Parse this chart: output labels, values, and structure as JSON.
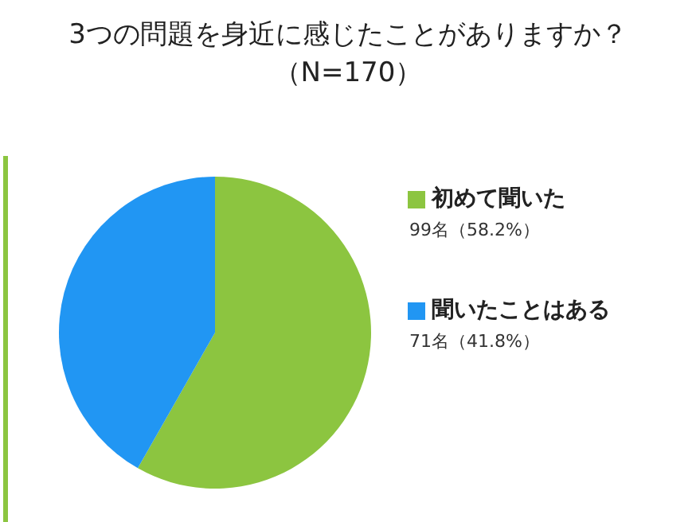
{
  "chart_data": {
    "type": "pie",
    "title": "3つの問題を身近に感じたことがありますか？",
    "subtitle": "（N=170）",
    "categories": [
      "初めて聞いた",
      "聞いたことはある"
    ],
    "values": [
      99,
      71
    ],
    "colors": [
      "#8cc540",
      "#2196f3"
    ],
    "value_labels": [
      "99名（58.2%）",
      "71名（41.8%）"
    ],
    "legend": "right"
  }
}
